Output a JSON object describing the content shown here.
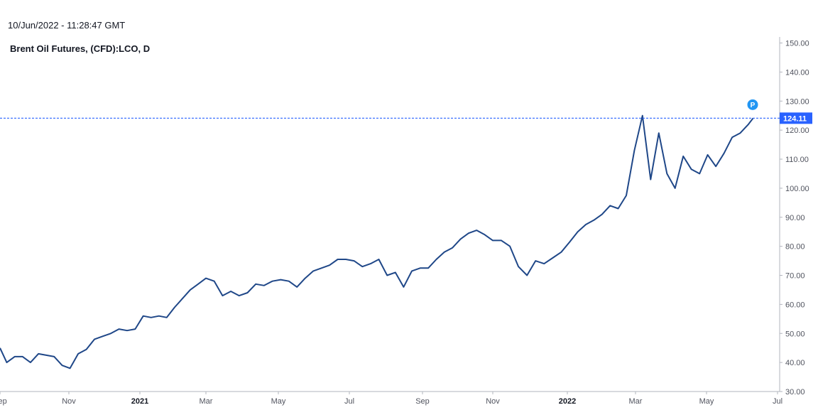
{
  "header": {
    "timestamp": "10/Jun/2022 - 11:28:47 GMT",
    "title": "Brent Oil Futures, (CFD):LCO, D"
  },
  "colors": {
    "line": "#1f4788",
    "last_price_line": "#2962ff",
    "last_price_badge": "#2962ff",
    "marker": "#2196f3",
    "axis": "#b2b5be"
  },
  "chart_data": {
    "type": "line",
    "title": "Brent Oil Futures, (CFD):LCO, D",
    "xlabel": "",
    "ylabel": "",
    "ylim": [
      30,
      151
    ],
    "y_ticks": [
      "30.00",
      "40.00",
      "50.00",
      "60.00",
      "70.00",
      "80.00",
      "90.00",
      "100.00",
      "110.00",
      "120.00",
      "130.00",
      "140.00",
      "150.00"
    ],
    "x_ticks": [
      {
        "label": "Sep",
        "date": "2020-09-01",
        "bold": false
      },
      {
        "label": "Nov",
        "date": "2020-11-01",
        "bold": false
      },
      {
        "label": "2021",
        "date": "2021-01-01",
        "bold": true
      },
      {
        "label": "Mar",
        "date": "2021-03-01",
        "bold": false
      },
      {
        "label": "May",
        "date": "2021-05-01",
        "bold": false
      },
      {
        "label": "Jul",
        "date": "2021-07-01",
        "bold": false
      },
      {
        "label": "Sep",
        "date": "2021-09-01",
        "bold": false
      },
      {
        "label": "Nov",
        "date": "2021-11-01",
        "bold": false
      },
      {
        "label": "2022",
        "date": "2022-01-01",
        "bold": true
      },
      {
        "label": "Mar",
        "date": "2022-03-01",
        "bold": false
      },
      {
        "label": "May",
        "date": "2022-05-01",
        "bold": false
      },
      {
        "label": "Jul",
        "date": "2022-07-01",
        "bold": false
      }
    ],
    "last_price": 124.11,
    "last_price_label": "124.11",
    "marker_label": "P",
    "series": [
      {
        "x": [
          "2020-09-01",
          "2020-09-07",
          "2020-09-14",
          "2020-09-21",
          "2020-09-28",
          "2020-10-05",
          "2020-10-12",
          "2020-10-19",
          "2020-10-26",
          "2020-11-02",
          "2020-11-09",
          "2020-11-16",
          "2020-11-23",
          "2020-11-30",
          "2020-12-07",
          "2020-12-14",
          "2020-12-21",
          "2020-12-28",
          "2021-01-04",
          "2021-01-11",
          "2021-01-18",
          "2021-01-25",
          "2021-02-01",
          "2021-02-08",
          "2021-02-15",
          "2021-02-22",
          "2021-03-01",
          "2021-03-08",
          "2021-03-15",
          "2021-03-22",
          "2021-03-29",
          "2021-04-05",
          "2021-04-12",
          "2021-04-19",
          "2021-04-26",
          "2021-05-03",
          "2021-05-10",
          "2021-05-17",
          "2021-05-24",
          "2021-05-31",
          "2021-06-07",
          "2021-06-14",
          "2021-06-21",
          "2021-06-28",
          "2021-07-05",
          "2021-07-12",
          "2021-07-19",
          "2021-07-26",
          "2021-08-02",
          "2021-08-09",
          "2021-08-16",
          "2021-08-23",
          "2021-08-30",
          "2021-09-06",
          "2021-09-13",
          "2021-09-20",
          "2021-09-27",
          "2021-10-04",
          "2021-10-11",
          "2021-10-18",
          "2021-10-25",
          "2021-11-01",
          "2021-11-08",
          "2021-11-15",
          "2021-11-22",
          "2021-11-29",
          "2021-12-06",
          "2021-12-13",
          "2021-12-20",
          "2021-12-27",
          "2022-01-03",
          "2022-01-10",
          "2022-01-17",
          "2022-01-24",
          "2022-01-31",
          "2022-02-07",
          "2022-02-14",
          "2022-02-21",
          "2022-02-28",
          "2022-03-07",
          "2022-03-14",
          "2022-03-21",
          "2022-03-28",
          "2022-04-04",
          "2022-04-11",
          "2022-04-18",
          "2022-04-25",
          "2022-05-02",
          "2022-05-09",
          "2022-05-16",
          "2022-05-23",
          "2022-05-30",
          "2022-06-06",
          "2022-06-10"
        ],
        "y": [
          45.0,
          40.0,
          42.0,
          42.0,
          40.0,
          43.0,
          42.5,
          42.0,
          39.0,
          38.0,
          43.0,
          44.5,
          48.0,
          49.0,
          50.0,
          51.5,
          51.0,
          51.5,
          56.0,
          55.5,
          56.0,
          55.5,
          59.0,
          62.0,
          65.0,
          67.0,
          69.0,
          68.0,
          63.0,
          64.5,
          63.0,
          64.0,
          67.0,
          66.5,
          68.0,
          68.5,
          68.0,
          66.0,
          69.0,
          71.5,
          72.5,
          73.5,
          75.5,
          75.5,
          75.0,
          73.0,
          74.0,
          75.5,
          70.0,
          71.0,
          66.0,
          71.5,
          72.5,
          72.5,
          75.5,
          78.0,
          79.5,
          82.5,
          84.5,
          85.5,
          84.0,
          82.0,
          82.0,
          80.0,
          73.0,
          70.0,
          75.0,
          74.0,
          76.0,
          78.0,
          81.5,
          85.0,
          87.5,
          89.0,
          91.0,
          94.0,
          93.0,
          97.5,
          113.0,
          125.0,
          103.0,
          119.0,
          105.0,
          100.0,
          111.0,
          106.5,
          105.0,
          111.5,
          107.5,
          112.0,
          117.5,
          119.0,
          122.0,
          124.11
        ]
      }
    ]
  }
}
